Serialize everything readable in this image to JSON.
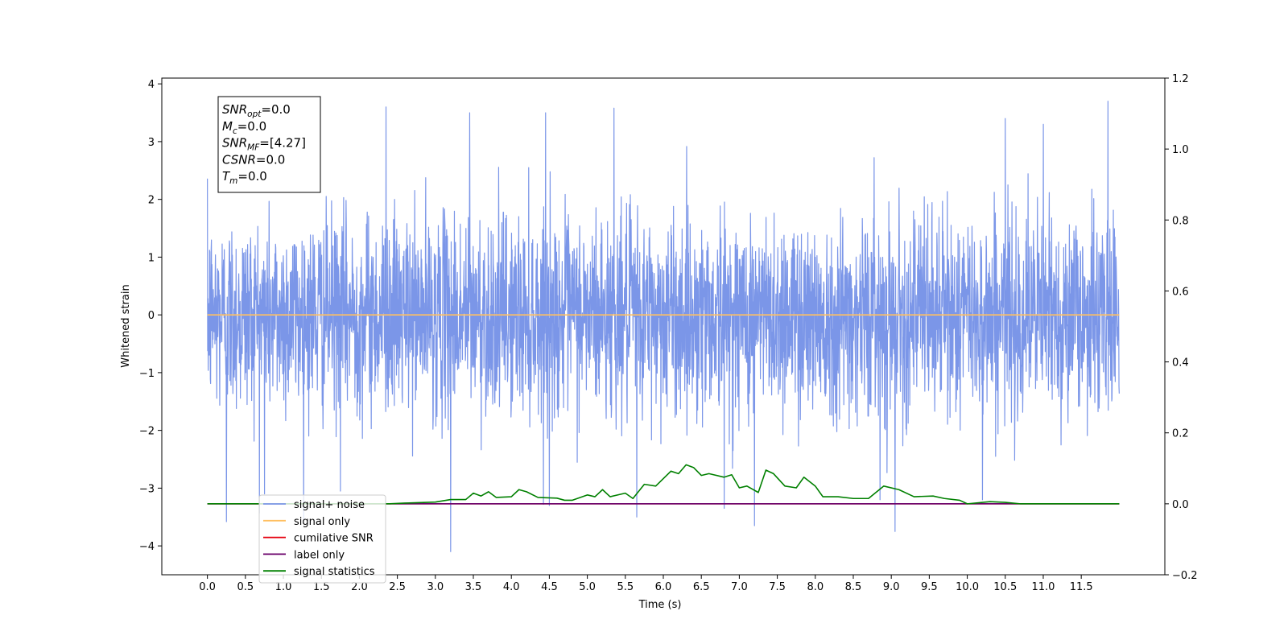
{
  "chart_data": {
    "type": "line",
    "xlabel": "Time (s)",
    "ylabel": "Whitened strain",
    "xlim": [
      -0.6,
      12.6
    ],
    "ylim": [
      -4.5,
      4.1
    ],
    "y2lim": [
      -0.2,
      1.2
    ],
    "x_ticks": [
      "0.0",
      "0.5",
      "1.0",
      "1.5",
      "2.0",
      "2.5",
      "3.0",
      "3.5",
      "4.0",
      "4.5",
      "5.0",
      "5.5",
      "6.0",
      "6.5",
      "7.0",
      "7.5",
      "8.0",
      "8.5",
      "9.0",
      "9.5",
      "10.0",
      "10.5",
      "11.0",
      "11.5"
    ],
    "y_ticks": [
      4,
      3,
      2,
      1,
      0,
      -1,
      -2,
      -3,
      -4
    ],
    "y2_ticks": [
      "1.2",
      "1.0",
      "0.8",
      "0.6",
      "0.4",
      "0.2",
      "0.0",
      "−0.2"
    ],
    "stats_box": [
      {
        "main": "SNR",
        "sub": "opt",
        "value": "=0.0"
      },
      {
        "main": "M",
        "sub": "c",
        "value": "=0.0"
      },
      {
        "main": "SNR",
        "sub": "MF",
        "value": "=[4.27]"
      },
      {
        "main": "CSNR",
        "sub": "",
        "value": "=0.0"
      },
      {
        "main": "T",
        "sub": "m",
        "value": "=0.0"
      }
    ],
    "legend_placement": "lower-left",
    "series": [
      {
        "name": "signal+ noise",
        "color": "#7b96e8",
        "axis": "left",
        "kind": "noise",
        "x_range": [
          0.0,
          12.0
        ],
        "amplitude_rms": 0.85,
        "y_min": -4.1,
        "y_max": 3.7,
        "spikes": [
          [
            0.25,
            -3.58
          ],
          [
            0.75,
            -3.1
          ],
          [
            1.75,
            -3.05
          ],
          [
            2.35,
            3.6
          ],
          [
            3.2,
            -4.1
          ],
          [
            3.45,
            3.5
          ],
          [
            4.45,
            3.5
          ],
          [
            4.5,
            -3.3
          ],
          [
            5.35,
            3.58
          ],
          [
            5.65,
            -3.5
          ],
          [
            6.8,
            -3.35
          ],
          [
            7.2,
            -3.65
          ],
          [
            8.85,
            -3.2
          ],
          [
            9.05,
            -3.75
          ],
          [
            10.2,
            -3.2
          ],
          [
            10.5,
            3.4
          ],
          [
            11.0,
            3.3
          ],
          [
            11.85,
            3.7
          ]
        ]
      },
      {
        "name": "signal only",
        "color": "#ffbf60",
        "axis": "left",
        "kind": "flat",
        "value": 0.0,
        "x_range": [
          0.0,
          12.0
        ]
      },
      {
        "name": "cumilative SNR",
        "color": "#e6000f",
        "axis": "right",
        "kind": "flat",
        "value": 0.0,
        "x_range": [
          0.0,
          12.0
        ]
      },
      {
        "name": "label only",
        "color": "#6a006a",
        "axis": "right",
        "kind": "flat",
        "value": 0.0,
        "x_range": [
          0.0,
          12.0
        ]
      },
      {
        "name": "signal statistics",
        "color": "#008000",
        "axis": "right",
        "kind": "line",
        "x_range": [
          0.0,
          12.0
        ],
        "points": [
          [
            0.0,
            0.0
          ],
          [
            2.4,
            0.0
          ],
          [
            2.6,
            0.002
          ],
          [
            3.0,
            0.005
          ],
          [
            3.2,
            0.012
          ],
          [
            3.4,
            0.012
          ],
          [
            3.5,
            0.03
          ],
          [
            3.6,
            0.022
          ],
          [
            3.7,
            0.034
          ],
          [
            3.8,
            0.018
          ],
          [
            4.0,
            0.02
          ],
          [
            4.1,
            0.04
          ],
          [
            4.2,
            0.034
          ],
          [
            4.35,
            0.018
          ],
          [
            4.6,
            0.016
          ],
          [
            4.7,
            0.01
          ],
          [
            4.8,
            0.01
          ],
          [
            5.0,
            0.025
          ],
          [
            5.1,
            0.02
          ],
          [
            5.2,
            0.04
          ],
          [
            5.3,
            0.02
          ],
          [
            5.5,
            0.03
          ],
          [
            5.6,
            0.015
          ],
          [
            5.75,
            0.055
          ],
          [
            5.9,
            0.05
          ],
          [
            6.1,
            0.092
          ],
          [
            6.2,
            0.085
          ],
          [
            6.3,
            0.11
          ],
          [
            6.4,
            0.102
          ],
          [
            6.5,
            0.08
          ],
          [
            6.6,
            0.085
          ],
          [
            6.8,
            0.075
          ],
          [
            6.9,
            0.082
          ],
          [
            7.0,
            0.045
          ],
          [
            7.1,
            0.05
          ],
          [
            7.25,
            0.032
          ],
          [
            7.35,
            0.095
          ],
          [
            7.45,
            0.085
          ],
          [
            7.6,
            0.05
          ],
          [
            7.75,
            0.045
          ],
          [
            7.85,
            0.075
          ],
          [
            8.0,
            0.05
          ],
          [
            8.1,
            0.02
          ],
          [
            8.3,
            0.02
          ],
          [
            8.5,
            0.015
          ],
          [
            8.7,
            0.015
          ],
          [
            8.9,
            0.05
          ],
          [
            9.1,
            0.04
          ],
          [
            9.3,
            0.02
          ],
          [
            9.55,
            0.022
          ],
          [
            9.7,
            0.015
          ],
          [
            9.9,
            0.01
          ],
          [
            10.0,
            0.0
          ],
          [
            10.3,
            0.006
          ],
          [
            10.5,
            0.004
          ],
          [
            10.7,
            0.0
          ],
          [
            11.0,
            0.0
          ],
          [
            12.0,
            0.0
          ]
        ]
      }
    ]
  }
}
